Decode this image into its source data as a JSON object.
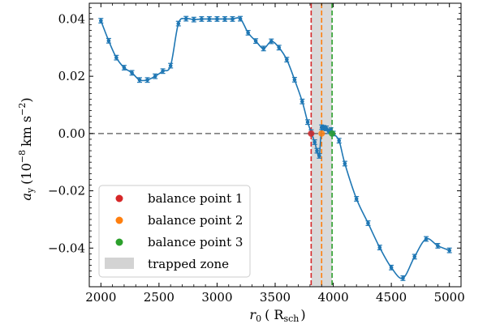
{
  "chart_data": {
    "type": "line",
    "xlabel_main": "r",
    "xlabel_sub": "0",
    "xlabel_unit": "( R",
    "xlabel_unit_sub": "sch",
    "xlabel_close": ")",
    "ylabel_main": "a",
    "ylabel_sub": "y",
    "ylabel_unit": "(10",
    "ylabel_exp": "−8",
    "ylabel_unit2": "km s",
    "ylabel_exp2": "−2",
    "ylabel_close": ")",
    "xlim": [
      1900,
      5100
    ],
    "ylim": [
      -0.0535,
      0.0455
    ],
    "x_ticks": [
      2000,
      2500,
      3000,
      3500,
      4000,
      4500,
      5000
    ],
    "x_tick_labels": [
      "2000",
      "2500",
      "3000",
      "3500",
      "4000",
      "4500",
      "5000"
    ],
    "y_ticks": [
      -0.04,
      -0.02,
      0.0,
      0.02,
      0.04
    ],
    "y_tick_labels": [
      "−0.04",
      "−0.02",
      "0.00",
      "0.02",
      "0.04"
    ],
    "zero_line": true,
    "series": [
      {
        "color": "#1f77b4",
        "x": [
          2000,
          2067,
          2133,
          2200,
          2267,
          2333,
          2400,
          2467,
          2533,
          2600,
          2667,
          2733,
          2800,
          2867,
          2933,
          3000,
          3067,
          3133,
          3200,
          3267,
          3333,
          3400,
          3467,
          3533,
          3600,
          3667,
          3733,
          3780,
          3810,
          3840,
          3860,
          3880,
          3900,
          3920,
          3940,
          3960,
          3980,
          4000,
          4050,
          4100,
          4200,
          4300,
          4400,
          4500,
          4600,
          4700,
          4800,
          4900,
          5000
        ],
        "y": [
          0.0394,
          0.0324,
          0.0265,
          0.023,
          0.0212,
          0.0187,
          0.0187,
          0.02,
          0.0218,
          0.0237,
          0.0384,
          0.0401,
          0.0398,
          0.04,
          0.04,
          0.04,
          0.04,
          0.04,
          0.0401,
          0.0352,
          0.0323,
          0.0297,
          0.0322,
          0.03,
          0.0258,
          0.0188,
          0.0112,
          0.004,
          0.0005,
          -0.003,
          -0.006,
          -0.0078,
          0.0022,
          0.002,
          0.0018,
          0.0008,
          0.0012,
          0.0,
          -0.0025,
          -0.0105,
          -0.0228,
          -0.0313,
          -0.0398,
          -0.0468,
          -0.0505,
          -0.043,
          -0.0368,
          -0.0392,
          -0.0408
        ],
        "yerr": 0.0008
      }
    ],
    "balance_points": [
      {
        "name": "balance point 1",
        "x": 3810,
        "y": 0.0,
        "color": "#d62728"
      },
      {
        "name": "balance point 2",
        "x": 3900,
        "y": 0.0,
        "color": "#ff7f0e"
      },
      {
        "name": "balance point 3",
        "x": 3990,
        "y": 0.0,
        "color": "#2ca02c"
      }
    ],
    "trapped_zone": {
      "name": "trapped zone",
      "x_range": [
        3810,
        3990
      ],
      "color": "#d3d3d3"
    },
    "legend": [
      "balance point 1",
      "balance point 2",
      "balance point 3",
      "trapped zone"
    ],
    "legend_position": "lower-left",
    "grid": false
  }
}
